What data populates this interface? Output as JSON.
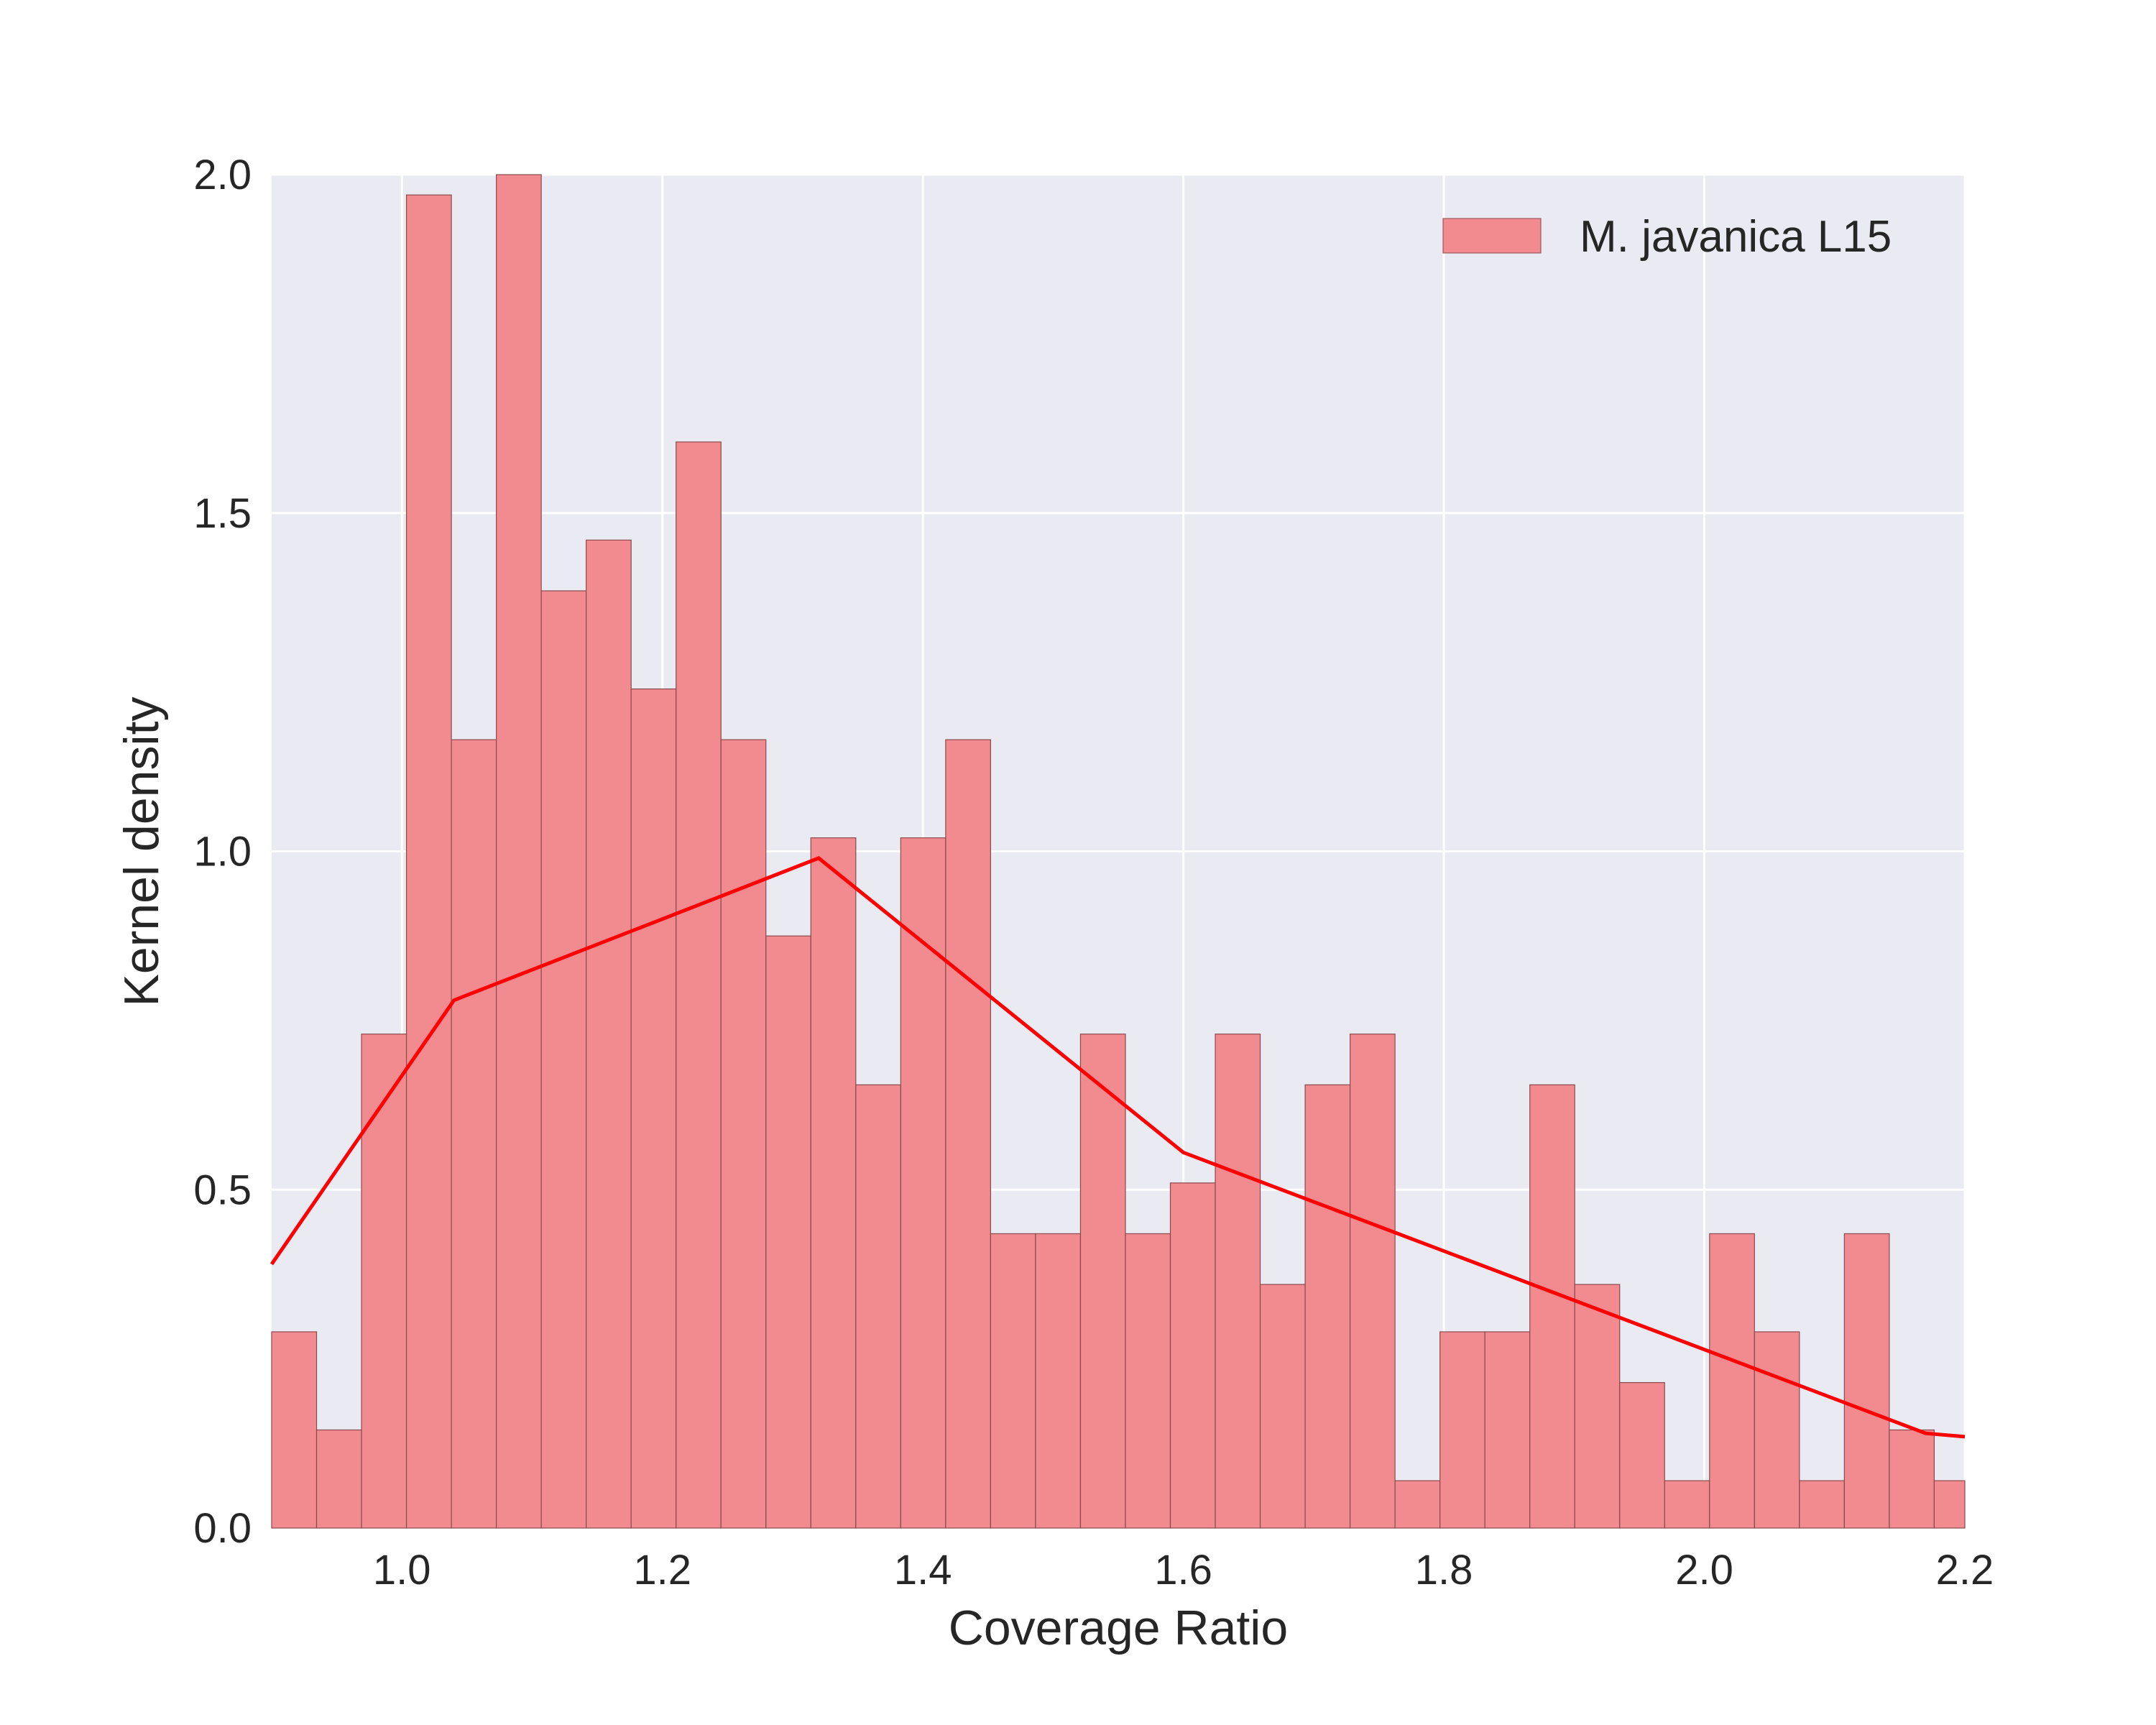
{
  "chart_data": {
    "type": "bar",
    "subtype": "histogram-with-density-line",
    "title": "",
    "xlabel": "Coverage Ratio",
    "ylabel": "Kernel density",
    "xlim": [
      0.9,
      2.2
    ],
    "ylim": [
      0.0,
      2.0
    ],
    "x_ticks": [
      "1.0",
      "1.2",
      "1.4",
      "1.6",
      "1.8",
      "2.0",
      "2.2"
    ],
    "y_ticks": [
      "0.0",
      "0.5",
      "1.0",
      "1.5",
      "2.0"
    ],
    "grid": true,
    "legend": {
      "placement": "top-right",
      "entries": [
        "M. javanica L15"
      ]
    },
    "colors": {
      "bars": "#f28b8f",
      "bar_edge": "#8a4a4c",
      "line": "#ff0000",
      "plot_bg": "#eaeaf2",
      "grid": "#ffffff"
    },
    "bin_edges": [
      0.9,
      0.9345,
      0.969,
      1.0035,
      1.038,
      1.0725,
      1.107,
      1.1415,
      1.176,
      1.2105,
      1.245,
      1.2795,
      1.314,
      1.3485,
      1.383,
      1.4175,
      1.452,
      1.4865,
      1.521,
      1.5555,
      1.59,
      1.6245,
      1.659,
      1.6935,
      1.728,
      1.7625,
      1.797,
      1.8315,
      1.866,
      1.9005,
      1.935,
      1.9695,
      2.004,
      2.0385,
      2.073,
      2.1075,
      2.142,
      2.1765,
      2.2
    ],
    "series": [
      {
        "name": "M. javanica L15",
        "type": "histogram",
        "values": [
          0.29,
          0.145,
          0.73,
          1.97,
          1.165,
          2.0,
          1.385,
          1.46,
          1.24,
          1.605,
          1.165,
          0.875,
          1.02,
          0.655,
          1.02,
          1.165,
          0.435,
          0.435,
          0.73,
          0.435,
          0.51,
          0.73,
          0.36,
          0.655,
          0.73,
          0.07,
          0.29,
          0.29,
          0.655,
          0.36,
          0.215,
          0.07,
          0.435,
          0.29,
          0.07,
          0.435,
          0.145,
          0.07
        ]
      },
      {
        "type": "line",
        "x": [
          0.9,
          1.04,
          1.32,
          1.6,
          2.17,
          2.2
        ],
        "y": [
          0.39,
          0.78,
          0.99,
          0.555,
          0.14,
          0.135
        ]
      }
    ]
  }
}
